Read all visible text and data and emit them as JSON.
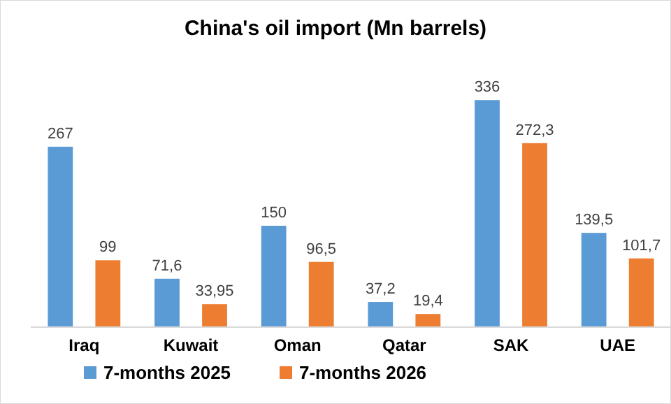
{
  "chart_data": {
    "type": "bar",
    "title": "China's oil import (Mn barrels)",
    "categories": [
      "Iraq",
      "Kuwait",
      "Oman",
      "Qatar",
      "SAK",
      "UAE"
    ],
    "series": [
      {
        "name": "7-months 2025",
        "color": "#5b9bd5",
        "values": [
          267,
          71.6,
          150,
          37.2,
          336,
          139.5
        ],
        "value_labels": [
          "267",
          "71,6",
          "150",
          "37,2",
          "336",
          "139,5"
        ]
      },
      {
        "name": "7-months 2026",
        "color": "#ed7d31",
        "values": [
          99,
          33.95,
          96.5,
          19.4,
          272.3,
          101.7
        ],
        "value_labels": [
          "99",
          "33,95",
          "96,5",
          "19,4",
          "272,3",
          "101,7"
        ]
      }
    ],
    "legend": "bottom left"
  }
}
